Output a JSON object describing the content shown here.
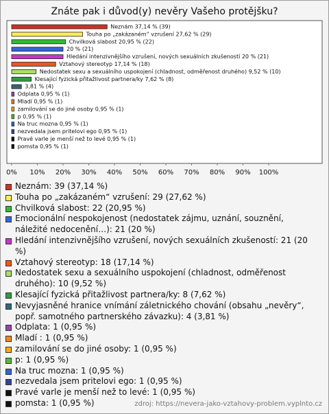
{
  "chart_data": {
    "type": "bar",
    "orientation": "horizontal",
    "title": "Znáte pak i důvod(y) nevěry Vašeho protějšku?",
    "values": [
      37.14,
      27.62,
      20.95,
      20,
      20,
      17.14,
      9.52,
      7.62,
      3.81,
      0.95,
      0.95,
      0.95,
      0.95,
      0.95,
      0.95,
      0.95,
      0.95
    ],
    "value_labels": [
      "Neznám 37,14 % (39)",
      "Touha po „zakázaném“ vzrušení 27,62 % (29)",
      "Chvilková slabost 20,95 % (22)",
      "20 % (21)",
      "Hledání intenzivnějšího vzrušení, nových sexuálních zkušeností 20 % (21)",
      "Vztahový stereotyp 17,14 % (18)",
      "Nedostatek sexu a sexuálního uspokojení (chladnost, odměřenost druhého) 9,52 % (10)",
      "Klesající fyzická přitažlivost partnera/ky 7,62 % (8)",
      "3,81 % (4)",
      "Odplata 0,95 % (1)",
      "Mladí 0,95 % (1)",
      "zamilování se do jiné osoby 0,95 % (1)",
      "p 0,95 % (1)",
      "Na truc mozna 0,95 % (1)",
      "nezvedala jsem pritelovi ego 0,95 % (1)",
      "Pravé varle je menší než to levé 0,95 % (1)",
      "pomsta 0,95 % (1)"
    ],
    "legend_labels": [
      "Neznám: 39 (37,14 %)",
      "Touha po „zakázaném“ vzrušení: 29 (27,62 %)",
      "Chvilková slabost: 22 (20,95 %)",
      "Emocionální nespokojenost (nedostatek zájmu, uznání, souznění, náležité nedocenění…): 21 (20 %)",
      "Hledání intenzivnějšího vzrušení, nových sexuálních zkušeností: 21 (20 %)",
      "Vztahový stereotyp: 18 (17,14 %)",
      "Nedostatek sexu a sexuálního uspokojení (chladnost, odměřenost druhého): 10 (9,52 %)",
      "Klesající fyzická přitažlivost partnera/ky: 8 (7,62 %)",
      "Nevyjasněné hranice vnímání záletnického chování (obsahu „nevěry“, popř. samotného partnerského závazku): 4 (3,81 %)",
      "Odplata: 1 (0,95 %)",
      "Mladí : 1 (0,95 %)",
      "zamilování se do jiné osoby: 1 (0,95 %)",
      "p: 1 (0,95 %)",
      "Na truc mozna: 1 (0,95 %)",
      "nezvedala jsem pritelovi ego: 1 (0,95 %)",
      "Pravé varle je menší než to levé: 1 (0,95 %)",
      "pomsta: 1 (0,95 %)"
    ],
    "colors": [
      "#cc3322",
      "#ffee55",
      "#33bb33",
      "#3366dd",
      "#cc33cc",
      "#ee5522",
      "#aade66",
      "#339944",
      "#336677",
      "#9944aa",
      "#ee8822",
      "#ffaa11",
      "#55bb33",
      "#3366cc",
      "#334499",
      "#111111",
      "#111111"
    ],
    "xlim": [
      0,
      100
    ],
    "xticks": [
      {
        "value": 0,
        "label": "0%"
      },
      {
        "value": 10,
        "label": "10%"
      },
      {
        "value": 20,
        "label": "20%"
      },
      {
        "value": 30,
        "label": "30%"
      },
      {
        "value": 40,
        "label": "40%"
      },
      {
        "value": 50,
        "label": "50%"
      },
      {
        "value": 60,
        "label": "60%"
      },
      {
        "value": 70,
        "label": "70%"
      },
      {
        "value": 80,
        "label": "80%"
      },
      {
        "value": 90,
        "label": "90%"
      },
      {
        "value": 100,
        "label": "100%"
      }
    ],
    "source": "zdroj: https://nevera-jako-vztahovy-problem.vyplnto.cz"
  }
}
